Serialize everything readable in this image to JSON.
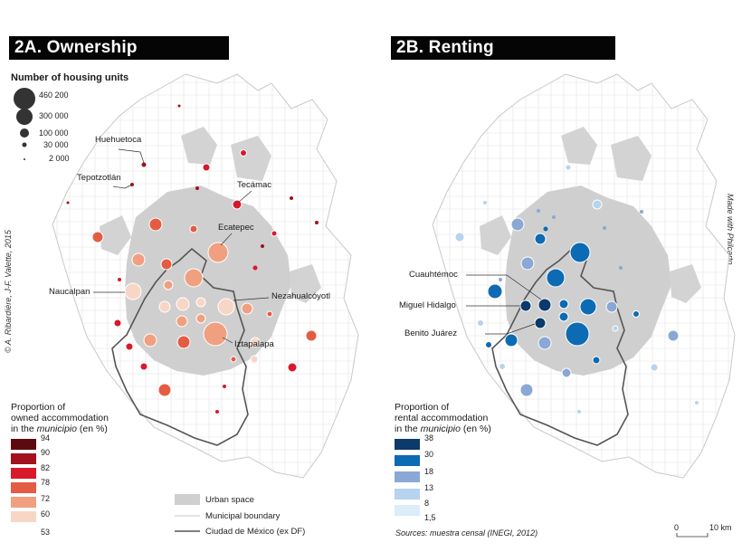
{
  "panels": {
    "a": {
      "title": "2A. Ownership"
    },
    "b": {
      "title": "2B. Renting"
    }
  },
  "credits": {
    "left": "© A. Ribardière, J-F. Valette, 2015",
    "right": "Made with Philcarto"
  },
  "size_legend": {
    "title": "Number of housing units",
    "items": [
      {
        "label": "460 200",
        "value": 460200
      },
      {
        "label": "300 000",
        "value": 300000
      },
      {
        "label": "100 000",
        "value": 100000
      },
      {
        "label": "30 000",
        "value": 30000
      },
      {
        "label": "2 000",
        "value": 2000
      }
    ]
  },
  "labels_a": {
    "huehuetoca": "Huehuetoca",
    "tepotzotlan": "Tepotzotlán",
    "tecamac": "Tecámac",
    "ecatepec": "Ecatepec",
    "naucalpan": "Naucalpan",
    "nezahualcoyotl": "Nezahualcóyotl",
    "iztapalapa": "Iztapalapa"
  },
  "labels_b": {
    "cuauhtemoc": "Cuauhtémoc",
    "miguel_hidalgo": "Miguel Hidalgo",
    "benito_juarez": "Benito Juárez"
  },
  "legend_a": {
    "title_line1": "Proportion of",
    "title_line2": "owned accommodation",
    "title_line3a": "in the ",
    "title_line3_italic": "municipio",
    "title_line3b": " (en %)",
    "classes": [
      {
        "label": "94",
        "color": "#5c0a10"
      },
      {
        "label": "90",
        "color": "#a3101e"
      },
      {
        "label": "82",
        "color": "#d9182b"
      },
      {
        "label": "78",
        "color": "#e45c44"
      },
      {
        "label": "72",
        "color": "#f0a080"
      },
      {
        "label": "60",
        "color": "#f8d6c6"
      },
      {
        "label": "53",
        "color": ""
      }
    ]
  },
  "legend_b": {
    "title_line1": "Proportion of",
    "title_line2": "rental accommodation",
    "title_line3a": "in the ",
    "title_line3_italic": "municipio",
    "title_line3b": " (en %)",
    "classes": [
      {
        "label": "38",
        "color": "#0b3a6b"
      },
      {
        "label": "30",
        "color": "#0d6bb3"
      },
      {
        "label": "18",
        "color": "#8aa8d6"
      },
      {
        "label": "13",
        "color": "#b6d3ef"
      },
      {
        "label": "8",
        "color": "#dcecf9"
      },
      {
        "label": "1,5",
        "color": ""
      }
    ]
  },
  "reference_legend": {
    "urban": "Urban space",
    "municipal": "Municipal boundary",
    "cdmx": "Ciudad de México (ex DF)"
  },
  "sources": "Sources: muestra censal (INEGI, 2012)",
  "scale": {
    "zero": "0",
    "ten": "10 km"
  },
  "colors": {
    "urban": "#cfcfcf",
    "land": "#ffffff",
    "boundary": "#bdbdbd",
    "cdmx_boundary": "#555555"
  }
}
